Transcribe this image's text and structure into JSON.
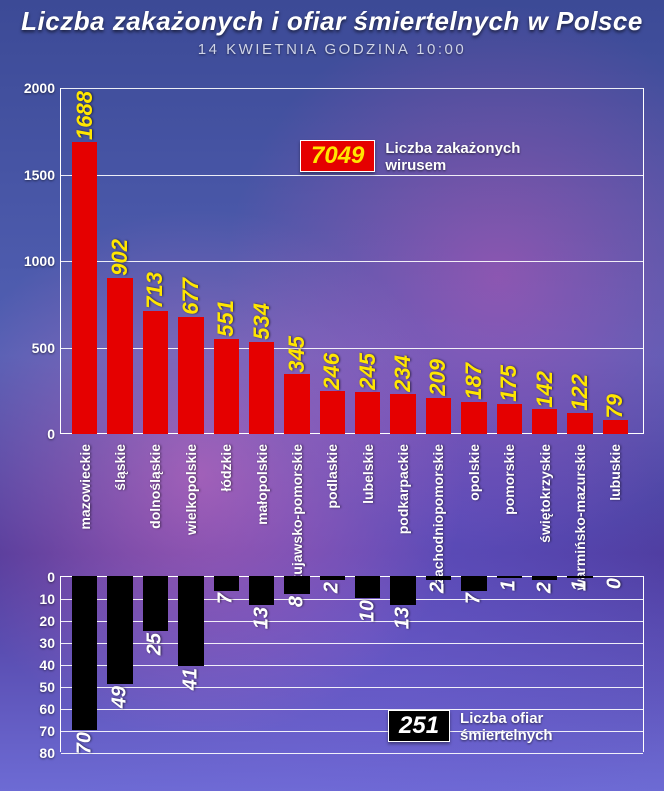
{
  "title": "Liczba zakażonych i ofiar śmiertelnych w Polsce",
  "subtitle": "14 KWIETNIA GODZINA 10:00",
  "categories": [
    "mazowieckie",
    "śląskie",
    "dolnośląskie",
    "wielkopolskie",
    "łódzkie",
    "małopolskie",
    "kujawsko-pomorskie",
    "podlaskie",
    "lubelskie",
    "podkarpackie",
    "zachodniopomorskie",
    "opolskie",
    "pomorskie",
    "świętokrzyskie",
    "warmińsko-mazurskie",
    "lubuskie"
  ],
  "top_chart": {
    "type": "bar",
    "values": [
      1688,
      902,
      713,
      677,
      551,
      534,
      345,
      246,
      245,
      234,
      209,
      187,
      175,
      142,
      122,
      79
    ],
    "bar_color": "#e50000",
    "value_label_color": "#ffe600",
    "ylim": [
      0,
      2000
    ],
    "ytick_step": 500,
    "grid_color": "#ffffff",
    "background_color": "transparent",
    "value_fontsize": 22
  },
  "bot_chart": {
    "type": "bar",
    "values": [
      70,
      49,
      25,
      41,
      7,
      13,
      8,
      2,
      10,
      13,
      2,
      7,
      1,
      2,
      1,
      0
    ],
    "bar_color": "#000000",
    "value_label_color": "#ffffff",
    "ylim": [
      0,
      80
    ],
    "ytick_step": 10,
    "grid_color": "#ffffff",
    "background_color": "transparent",
    "value_fontsize": 20,
    "inverted": true
  },
  "badge_top": {
    "number": "7049",
    "label": "Liczba zakażonych wirusem",
    "box_bg": "#e50000",
    "box_fg": "#ffe600"
  },
  "badge_bot": {
    "number": "251",
    "label": "Liczba ofiar śmiertelnych",
    "box_bg": "#000000",
    "box_fg": "#ffffff"
  },
  "typography": {
    "title_fontsize": 26,
    "subtitle_fontsize": 15,
    "tick_fontsize": 14,
    "category_fontsize": 14,
    "badge_number_fontsize": 24,
    "badge_label_fontsize": 15
  }
}
